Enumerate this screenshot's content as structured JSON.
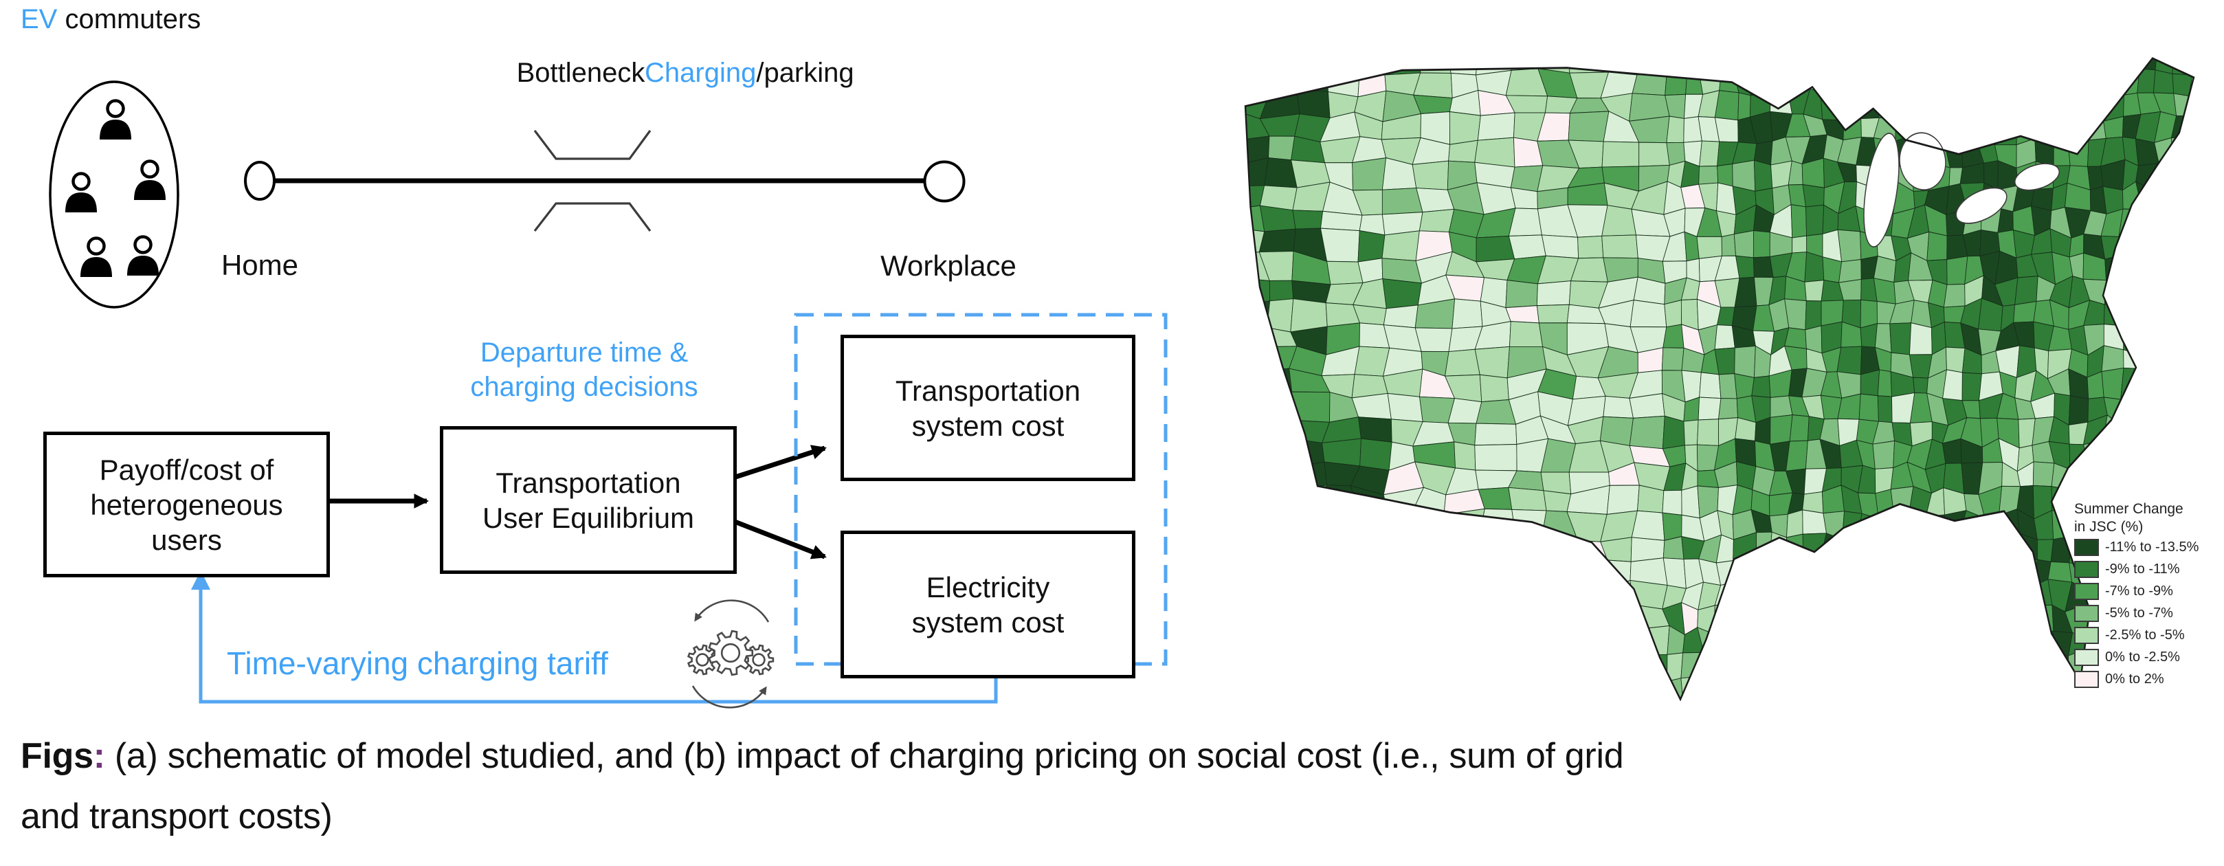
{
  "figure": {
    "schematic": {
      "title_prefix": "EV",
      "title_suffix": " commuters",
      "bottleneck_label": "Bottleneck",
      "charging_label": "Charging",
      "parking_label": "/parking",
      "home_label": "Home",
      "workplace_label": "Workplace",
      "departure_line1": "Departure time &",
      "departure_line2": "charging decisions",
      "payoff_box": [
        "Payoff/cost of",
        "heterogeneous",
        "users"
      ],
      "tue_box": [
        "Transportation",
        "User Equilibrium"
      ],
      "transport_cost_box": [
        "Transportation",
        "system cost"
      ],
      "electricity_cost_box": [
        "Electricity",
        "system cost"
      ],
      "tariff_label": "Time-varying charging tariff",
      "icons": {
        "commuter_icon": "person-icon",
        "tariff_icon": "iteration-gears-icon",
        "bottleneck_icon": "road-bottleneck-icon"
      }
    },
    "map": {
      "legend_title_line1": "Summer Change",
      "legend_title_line2": "in JSC (%)",
      "legend": [
        {
          "label": "-11% to -13.5%",
          "color": "#1a4620"
        },
        {
          "label": "-9% to -11%",
          "color": "#2f7d36"
        },
        {
          "label": "-7% to -9%",
          "color": "#4d9f52"
        },
        {
          "label": "-5% to -7%",
          "color": "#80bf81"
        },
        {
          "label": "-2.5% to -5%",
          "color": "#b0dcae"
        },
        {
          "label": "0% to -2.5%",
          "color": "#daefd8"
        },
        {
          "label": "0% to 2%",
          "color": "#fdf0f3"
        }
      ],
      "county_border_color": "#17301a",
      "outline_color": "#1a1a1a"
    },
    "caption": {
      "prefix": "Figs",
      "colon": ":",
      "line1_rest": " (a) schematic of model studied, and (b) impact of charging pricing on social cost (i.e., sum of grid",
      "line2": "and transport costs)"
    },
    "colors": {
      "accent_blue_text": "#3fa2f6",
      "accent_blue_line": "#55a6f2",
      "caption_colon_purple": "#6e3677"
    }
  }
}
